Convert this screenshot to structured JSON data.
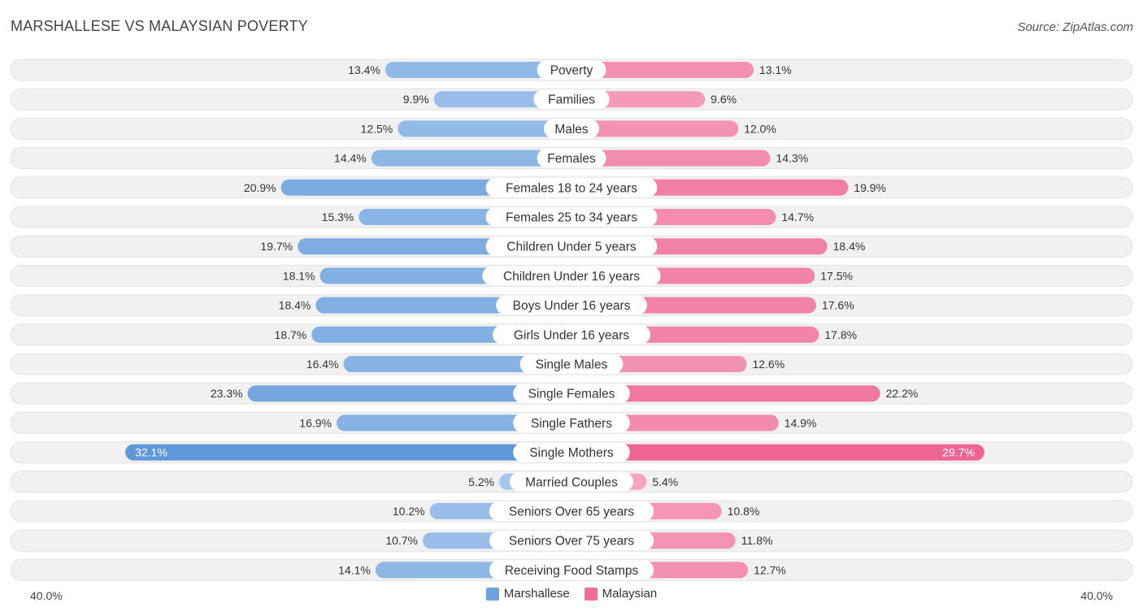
{
  "title": "MARSHALLESE VS MALAYSIAN POVERTY",
  "source": "Source: ZipAtlas.com",
  "axis": {
    "left_label": "40.0%",
    "right_label": "40.0%"
  },
  "legend": [
    {
      "name": "Marshallese",
      "color": "#6aa3dd"
    },
    {
      "name": "Malaysian",
      "color": "#f06d98"
    }
  ],
  "chart_data": {
    "type": "bar",
    "orientation": "horizontal-diverging",
    "title": "MARSHALLESE VS MALAYSIAN POVERTY",
    "xlim": [
      -40,
      40
    ],
    "unit": "%",
    "categories": [
      "Poverty",
      "Families",
      "Males",
      "Females",
      "Females 18 to 24 years",
      "Females 25 to 34 years",
      "Children Under 5 years",
      "Children Under 16 years",
      "Boys Under 16 years",
      "Girls Under 16 years",
      "Single Males",
      "Single Females",
      "Single Fathers",
      "Single Mothers",
      "Married Couples",
      "Seniors Over 65 years",
      "Seniors Over 75 years",
      "Receiving Food Stamps"
    ],
    "series": [
      {
        "name": "Marshallese",
        "values": [
          13.4,
          9.9,
          12.5,
          14.4,
          20.9,
          15.3,
          19.7,
          18.1,
          18.4,
          18.7,
          16.4,
          23.3,
          16.9,
          32.1,
          5.2,
          10.2,
          10.7,
          14.1
        ],
        "labels": [
          "13.4%",
          "9.9%",
          "12.5%",
          "14.4%",
          "20.9%",
          "15.3%",
          "19.7%",
          "18.1%",
          "18.4%",
          "18.7%",
          "16.4%",
          "23.3%",
          "16.9%",
          "32.1%",
          "5.2%",
          "10.2%",
          "10.7%",
          "14.1%"
        ]
      },
      {
        "name": "Malaysian",
        "values": [
          13.1,
          9.6,
          12.0,
          14.3,
          19.9,
          14.7,
          18.4,
          17.5,
          17.6,
          17.8,
          12.6,
          22.2,
          14.9,
          29.7,
          5.4,
          10.8,
          11.8,
          12.7
        ],
        "labels": [
          "13.1%",
          "9.6%",
          "12.0%",
          "14.3%",
          "19.9%",
          "14.7%",
          "18.4%",
          "17.5%",
          "17.6%",
          "17.8%",
          "12.6%",
          "22.2%",
          "14.9%",
          "29.7%",
          "5.4%",
          "10.8%",
          "11.8%",
          "12.7%"
        ]
      }
    ]
  }
}
